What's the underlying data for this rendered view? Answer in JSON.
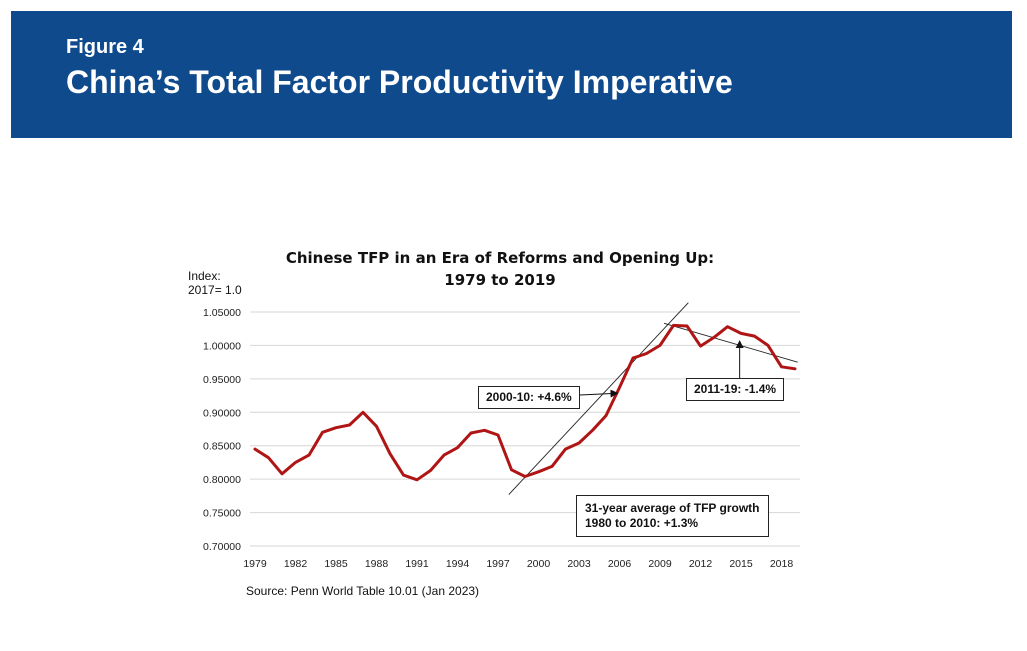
{
  "header": {
    "figure_label": "Figure 4",
    "title": "China’s Total Factor Productivity Imperative",
    "background_color": "#0f4a8c"
  },
  "chart_data": {
    "type": "line",
    "title_line1": "Chinese TFP in an Era of Reforms and Opening Up:",
    "title_line2": "1979 to 2019",
    "ylabel_line1": "Index:",
    "ylabel_line2": "2017= 1.0",
    "ylim": [
      0.7,
      1.05
    ],
    "xlim": [
      1979,
      2019
    ],
    "y_ticks": [
      "0.70000",
      "0.75000",
      "0.80000",
      "0.85000",
      "0.90000",
      "0.95000",
      "1.00000",
      "1.05000"
    ],
    "x_ticks": [
      "1979",
      "1982",
      "1985",
      "1988",
      "1991",
      "1994",
      "1997",
      "2000",
      "2003",
      "2006",
      "2009",
      "2012",
      "2015",
      "2018"
    ],
    "grid": "horizontal",
    "series_color": "#b01515",
    "x": [
      1979,
      1980,
      1981,
      1982,
      1983,
      1984,
      1985,
      1986,
      1987,
      1988,
      1989,
      1990,
      1991,
      1992,
      1993,
      1994,
      1995,
      1996,
      1997,
      1998,
      1999,
      2000,
      2001,
      2002,
      2003,
      2004,
      2005,
      2006,
      2007,
      2008,
      2009,
      2010,
      2011,
      2012,
      2013,
      2014,
      2015,
      2016,
      2017,
      2018,
      2019
    ],
    "values": [
      0.845,
      0.832,
      0.808,
      0.825,
      0.836,
      0.87,
      0.877,
      0.881,
      0.9,
      0.879,
      0.838,
      0.806,
      0.799,
      0.813,
      0.836,
      0.847,
      0.869,
      0.873,
      0.866,
      0.814,
      0.804,
      0.811,
      0.819,
      0.845,
      0.854,
      0.873,
      0.895,
      0.937,
      0.981,
      0.988,
      1.0,
      1.03,
      1.029,
      0.999,
      1.012,
      1.028,
      1.018,
      1.014,
      1.0,
      0.968,
      0.965
    ],
    "trendlines": [
      {
        "from": [
          1997.8,
          0.777
        ],
        "to": [
          2011.1,
          1.064
        ]
      },
      {
        "from": [
          2009.3,
          1.033
        ],
        "to": [
          2019.2,
          0.975
        ]
      }
    ],
    "annotations": [
      {
        "text": "2000-10: +4.6%",
        "arrow_to": [
          2006.0,
          0.93
        ]
      },
      {
        "text": "2011-19: -1.4%",
        "arrow_to": [
          2014.9,
          1.005
        ]
      },
      {
        "line1": "31-year average of TFP growth",
        "line2": "1980 to 2010: +1.3%"
      }
    ]
  },
  "source": "Source: Penn World Table 10.01 (Jan 2023)"
}
